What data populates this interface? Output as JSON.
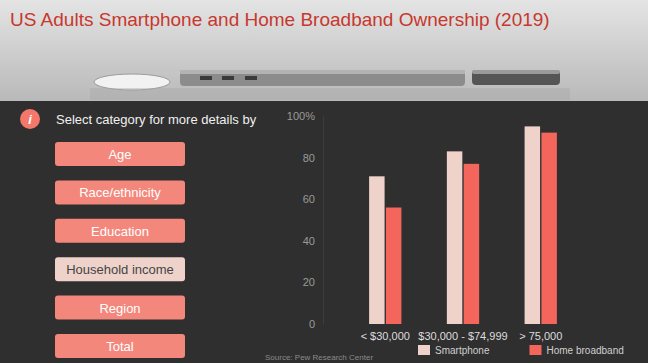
{
  "chart_data": {
    "type": "bar",
    "title": "US Adults Smartphone and Home Broadband Ownership (2019)",
    "source": "Source: Pew Research Center",
    "categories": [
      "< $30,000",
      "$30,000 - $74,999",
      "> 75,000"
    ],
    "series": [
      {
        "name": "Smartphone",
        "color": "#efd3ca",
        "values": [
          71,
          83,
          95
        ]
      },
      {
        "name": "Home broadband",
        "color": "#f4665c",
        "values": [
          56,
          77,
          92
        ]
      }
    ],
    "ylim": [
      0,
      100
    ],
    "yticks": [
      0,
      20,
      40,
      60,
      80,
      {
        "value": 100,
        "label": "100%"
      }
    ],
    "grid": false,
    "legend": "bottom"
  },
  "menu": {
    "icon": "i",
    "prompt": "Select category for more details by",
    "buttons": [
      {
        "label": "Age",
        "selected": false
      },
      {
        "label": "Race/ethnicity",
        "selected": false
      },
      {
        "label": "Education",
        "selected": false
      },
      {
        "label": "Household income",
        "selected": true
      },
      {
        "label": "Region",
        "selected": false
      },
      {
        "label": "Total",
        "selected": false
      }
    ]
  }
}
